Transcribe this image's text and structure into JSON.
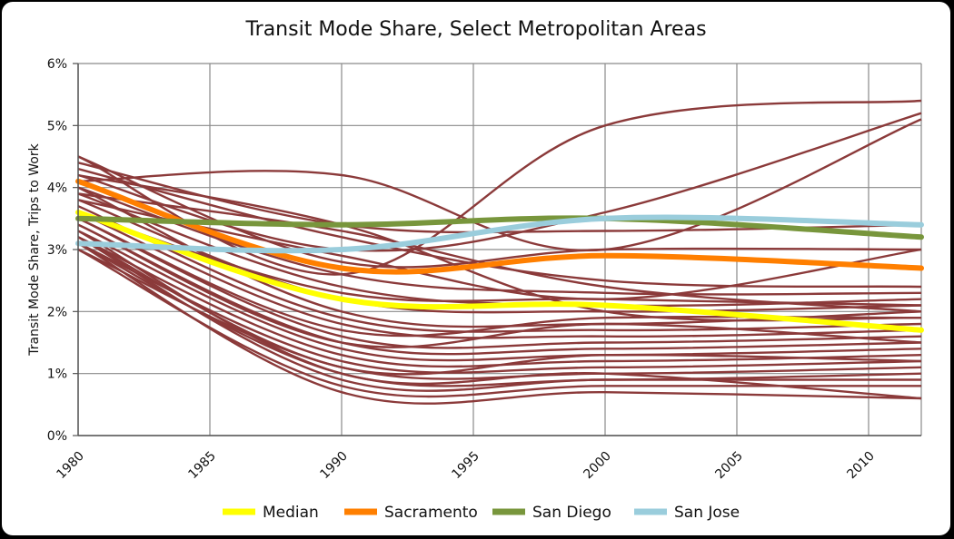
{
  "chart_data": {
    "type": "line",
    "title": "Transit Mode Share, Select Metropolitan Areas",
    "ylabel": "Transit Mode Share, Trips to Work",
    "xlabel": "",
    "x": [
      1980,
      1990,
      2000,
      2012
    ],
    "xticks": [
      "1980",
      "1985",
      "1990",
      "1995",
      "2000",
      "2005",
      "2010"
    ],
    "xlim": [
      1980,
      2012
    ],
    "yticks": [
      "0%",
      "1%",
      "2%",
      "3%",
      "4%",
      "5%",
      "6%"
    ],
    "ylim": [
      0,
      6
    ],
    "grid": true,
    "legend_position": "bottom",
    "background_color": "#8B3A3A",
    "background_series": [
      [
        4.5,
        2.6,
        5.0,
        5.4
      ],
      [
        4.2,
        3.0,
        3.6,
        5.2
      ],
      [
        4.1,
        4.2,
        3.0,
        5.1
      ],
      [
        4.4,
        3.4,
        3.3,
        3.4
      ],
      [
        4.5,
        2.8,
        3.0,
        3.0
      ],
      [
        4.3,
        3.2,
        2.5,
        2.4
      ],
      [
        4.0,
        2.6,
        2.3,
        2.3
      ],
      [
        3.9,
        2.4,
        2.1,
        2.2
      ],
      [
        3.8,
        2.2,
        2.0,
        2.1
      ],
      [
        4.0,
        2.0,
        1.8,
        2.0
      ],
      [
        3.7,
        1.9,
        1.7,
        1.8
      ],
      [
        3.6,
        1.8,
        1.6,
        1.7
      ],
      [
        3.5,
        1.6,
        1.5,
        1.6
      ],
      [
        3.4,
        1.5,
        1.4,
        1.5
      ],
      [
        3.3,
        1.4,
        1.3,
        1.4
      ],
      [
        3.2,
        1.3,
        1.2,
        1.3
      ],
      [
        3.1,
        1.2,
        1.1,
        1.2
      ],
      [
        3.0,
        1.1,
        1.0,
        1.1
      ],
      [
        3.1,
        1.0,
        0.9,
        1.0
      ],
      [
        3.2,
        0.9,
        0.9,
        0.9
      ],
      [
        3.0,
        0.8,
        0.8,
        0.8
      ],
      [
        3.1,
        0.7,
        0.7,
        0.6
      ],
      [
        3.3,
        1.0,
        1.0,
        0.6
      ],
      [
        3.5,
        1.7,
        1.9,
        1.9
      ],
      [
        3.6,
        2.3,
        2.2,
        2.1
      ],
      [
        3.4,
        1.5,
        1.8,
        1.5
      ],
      [
        3.2,
        1.1,
        1.3,
        1.2
      ],
      [
        3.9,
        3.3,
        2.4,
        2.0
      ],
      [
        4.2,
        3.4,
        2.0,
        1.9
      ],
      [
        3.8,
        2.9,
        2.2,
        3.0
      ]
    ],
    "series": [
      {
        "name": "Median",
        "color": "#FFFF00",
        "values": [
          3.6,
          2.2,
          2.1,
          1.7
        ]
      },
      {
        "name": "Sacramento",
        "color": "#FF7F00",
        "values": [
          4.1,
          2.7,
          2.9,
          2.7
        ]
      },
      {
        "name": "San Diego",
        "color": "#78963C",
        "values": [
          3.5,
          3.4,
          3.5,
          3.2
        ]
      },
      {
        "name": "San Jose",
        "color": "#9ACDDC",
        "values": [
          3.1,
          3.0,
          3.5,
          3.4
        ]
      }
    ]
  }
}
